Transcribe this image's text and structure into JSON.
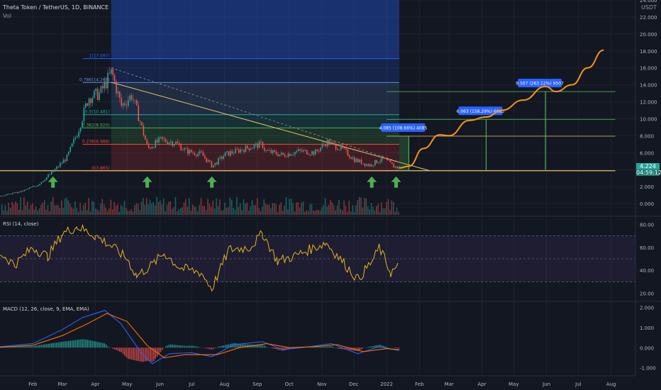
{
  "header": {
    "symbol_title": "Theta Token / TetherUS, 1D, BINANCE",
    "vol_label": "Vol",
    "currency": "USDT"
  },
  "price_tag": {
    "value": "4.224",
    "countdown": "04:59:12"
  },
  "colors": {
    "background": "#131722",
    "candle_up": "#26a69a",
    "candle_down": "#ef5350",
    "projection": "#f7931a",
    "trendline": "#e6c16a",
    "rsi": "#e6b422",
    "macd": "#2962ff",
    "signal": "#ff6d00",
    "arrow": "#4caf50",
    "callout": "#2962ff"
  },
  "chart_data": [
    {
      "type": "candlestick",
      "title": "Theta Token / TetherUS, 1D, BINANCE",
      "y_axis_ticks": [
        "24.000",
        "22.000",
        "20.000",
        "18.000",
        "16.000",
        "14.000",
        "12.000",
        "10.000",
        "8.000",
        "6.000",
        "4.000",
        "2.000",
        "0.000"
      ],
      "ylim": [
        -1.5,
        24
      ],
      "x_axis_ticks": [
        "Feb",
        "Mar",
        "Apr",
        "May",
        "Jun",
        "Jul",
        "Aug",
        "Sep",
        "Oct",
        "Nov",
        "Dec",
        "2022",
        "Feb",
        "Mar",
        "Apr",
        "May",
        "Jun",
        "Jul",
        "Aug"
      ],
      "close_series": [
        {
          "date": "2021-01-01",
          "close": 0.9
        },
        {
          "date": "2021-01-20",
          "close": 1.4
        },
        {
          "date": "2021-02-05",
          "close": 2.2
        },
        {
          "date": "2021-02-20",
          "close": 3.8
        },
        {
          "date": "2021-03-05",
          "close": 5.5
        },
        {
          "date": "2021-03-15",
          "close": 8.5
        },
        {
          "date": "2021-03-25",
          "close": 12.5
        },
        {
          "date": "2021-04-05",
          "close": 13.0
        },
        {
          "date": "2021-04-16",
          "close": 15.5
        },
        {
          "date": "2021-04-25",
          "close": 11.5
        },
        {
          "date": "2021-05-05",
          "close": 12.8
        },
        {
          "date": "2021-05-12",
          "close": 10.0
        },
        {
          "date": "2021-05-20",
          "close": 6.5
        },
        {
          "date": "2021-06-01",
          "close": 7.5
        },
        {
          "date": "2021-06-15",
          "close": 7.2
        },
        {
          "date": "2021-06-25",
          "close": 6.2
        },
        {
          "date": "2021-07-10",
          "close": 5.8
        },
        {
          "date": "2021-07-20",
          "close": 4.4
        },
        {
          "date": "2021-08-01",
          "close": 5.8
        },
        {
          "date": "2021-08-20",
          "close": 6.5
        },
        {
          "date": "2021-09-05",
          "close": 7.0
        },
        {
          "date": "2021-09-08",
          "close": 6.2
        },
        {
          "date": "2021-09-25",
          "close": 5.7
        },
        {
          "date": "2021-10-10",
          "close": 6.2
        },
        {
          "date": "2021-10-25",
          "close": 6.0
        },
        {
          "date": "2021-11-05",
          "close": 7.3
        },
        {
          "date": "2021-11-20",
          "close": 6.4
        },
        {
          "date": "2021-12-01",
          "close": 5.2
        },
        {
          "date": "2021-12-15",
          "close": 4.5
        },
        {
          "date": "2021-12-28",
          "close": 5.3
        },
        {
          "date": "2022-01-07",
          "close": 4.4
        },
        {
          "date": "2022-01-13",
          "close": 4.2
        }
      ],
      "fib_levels": [
        {
          "ratio": "1",
          "price": "17.097"
        },
        {
          "ratio": "0.786",
          "price": "14.266"
        },
        {
          "ratio": "0.5",
          "price": "10.481"
        },
        {
          "ratio": "0.382",
          "price": "8.920"
        },
        {
          "ratio": "0.236",
          "price": "6.988"
        },
        {
          "ratio": "0",
          "price": "3.865"
        }
      ],
      "projection": [
        {
          "date": "2022-01-13",
          "price": 4.2
        },
        {
          "date": "2022-01-22",
          "price": 4.4
        },
        {
          "date": "2022-02-05",
          "price": 6.5
        },
        {
          "date": "2022-02-20",
          "price": 8.1
        },
        {
          "date": "2022-03-01",
          "price": 8.0
        },
        {
          "date": "2022-03-20",
          "price": 9.8
        },
        {
          "date": "2022-04-05",
          "price": 10.2
        },
        {
          "date": "2022-04-20",
          "price": 11.0
        },
        {
          "date": "2022-05-10",
          "price": 12.2
        },
        {
          "date": "2022-05-31",
          "price": 13.8
        },
        {
          "date": "2022-06-10",
          "price": 13.2
        },
        {
          "date": "2022-06-25",
          "price": 14.0
        },
        {
          "date": "2022-07-10",
          "price": 16.0
        },
        {
          "date": "2022-07-25",
          "price": 18.1
        }
      ],
      "targets": [
        {
          "label": "4.085 (108.66%) 4085",
          "price": 7.95
        },
        {
          "label": "6.063 (158.29%) 6063",
          "price": 9.93
        },
        {
          "label": "9.507 (263.12%) 9507",
          "price": 13.2
        }
      ],
      "support_price": 3.87,
      "buy_arrows": [
        "2021-02-20",
        "2021-05-20",
        "2021-07-20",
        "2021-12-18",
        "2022-01-10"
      ]
    },
    {
      "type": "line",
      "title": "RSI (14, close)",
      "y_axis_ticks": [
        "80.00",
        "60.00",
        "40.00",
        "20.00"
      ],
      "ylim": [
        13,
        87
      ],
      "bands": [
        30,
        50,
        70
      ],
      "values": [
        {
          "date": "2021-01-01",
          "v": 55
        },
        {
          "date": "2021-01-15",
          "v": 45
        },
        {
          "date": "2021-02-01",
          "v": 60
        },
        {
          "date": "2021-02-15",
          "v": 52
        },
        {
          "date": "2021-03-01",
          "v": 72
        },
        {
          "date": "2021-03-15",
          "v": 78
        },
        {
          "date": "2021-04-01",
          "v": 70
        },
        {
          "date": "2021-04-15",
          "v": 62
        },
        {
          "date": "2021-05-01",
          "v": 50
        },
        {
          "date": "2021-05-10",
          "v": 35
        },
        {
          "date": "2021-05-25",
          "v": 45
        },
        {
          "date": "2021-06-05",
          "v": 55
        },
        {
          "date": "2021-06-20",
          "v": 42
        },
        {
          "date": "2021-07-10",
          "v": 38
        },
        {
          "date": "2021-07-20",
          "v": 24
        },
        {
          "date": "2021-08-05",
          "v": 58
        },
        {
          "date": "2021-08-25",
          "v": 60
        },
        {
          "date": "2021-09-06",
          "v": 72
        },
        {
          "date": "2021-09-20",
          "v": 48
        },
        {
          "date": "2021-10-05",
          "v": 52
        },
        {
          "date": "2021-10-20",
          "v": 58
        },
        {
          "date": "2021-11-05",
          "v": 64
        },
        {
          "date": "2021-11-20",
          "v": 48
        },
        {
          "date": "2021-12-05",
          "v": 32
        },
        {
          "date": "2021-12-20",
          "v": 50
        },
        {
          "date": "2021-12-25",
          "v": 60
        },
        {
          "date": "2022-01-05",
          "v": 38
        },
        {
          "date": "2022-01-13",
          "v": 44
        }
      ]
    },
    {
      "type": "line",
      "title": "MACD (12, 26, close, 9, EMA, EMA)",
      "y_axis_ticks": [
        "2.000",
        "1.000",
        "0.000",
        "-1.000"
      ],
      "ylim": [
        -1.4,
        2.3
      ],
      "series": [
        {
          "name": "MACD",
          "values": [
            {
              "date": "2021-01-01",
              "v": 0.05
            },
            {
              "date": "2021-02-01",
              "v": 0.2
            },
            {
              "date": "2021-03-01",
              "v": 0.9
            },
            {
              "date": "2021-03-20",
              "v": 1.5
            },
            {
              "date": "2021-04-10",
              "v": 1.85
            },
            {
              "date": "2021-04-25",
              "v": 1.2
            },
            {
              "date": "2021-05-15",
              "v": -0.3
            },
            {
              "date": "2021-05-25",
              "v": -0.8
            },
            {
              "date": "2021-06-10",
              "v": -0.3
            },
            {
              "date": "2021-07-01",
              "v": -0.25
            },
            {
              "date": "2021-07-20",
              "v": -0.45
            },
            {
              "date": "2021-08-10",
              "v": 0.15
            },
            {
              "date": "2021-09-06",
              "v": 0.3
            },
            {
              "date": "2021-09-25",
              "v": -0.1
            },
            {
              "date": "2021-10-20",
              "v": 0.05
            },
            {
              "date": "2021-11-10",
              "v": 0.2
            },
            {
              "date": "2021-12-05",
              "v": -0.3
            },
            {
              "date": "2021-12-25",
              "v": 0.05
            },
            {
              "date": "2022-01-13",
              "v": -0.15
            }
          ]
        },
        {
          "name": "Signal",
          "values": [
            {
              "date": "2021-01-01",
              "v": 0.02
            },
            {
              "date": "2021-02-01",
              "v": 0.12
            },
            {
              "date": "2021-03-01",
              "v": 0.6
            },
            {
              "date": "2021-03-25",
              "v": 1.2
            },
            {
              "date": "2021-04-12",
              "v": 1.7
            },
            {
              "date": "2021-05-01",
              "v": 1.3
            },
            {
              "date": "2021-05-20",
              "v": 0.1
            },
            {
              "date": "2021-06-05",
              "v": -0.5
            },
            {
              "date": "2021-06-25",
              "v": -0.35
            },
            {
              "date": "2021-07-25",
              "v": -0.35
            },
            {
              "date": "2021-08-15",
              "v": 0.0
            },
            {
              "date": "2021-09-10",
              "v": 0.2
            },
            {
              "date": "2021-10-01",
              "v": 0.0
            },
            {
              "date": "2021-10-25",
              "v": 0.05
            },
            {
              "date": "2021-11-15",
              "v": 0.15
            },
            {
              "date": "2021-12-10",
              "v": -0.2
            },
            {
              "date": "2022-01-01",
              "v": -0.05
            },
            {
              "date": "2022-01-13",
              "v": -0.1
            }
          ]
        }
      ]
    }
  ]
}
